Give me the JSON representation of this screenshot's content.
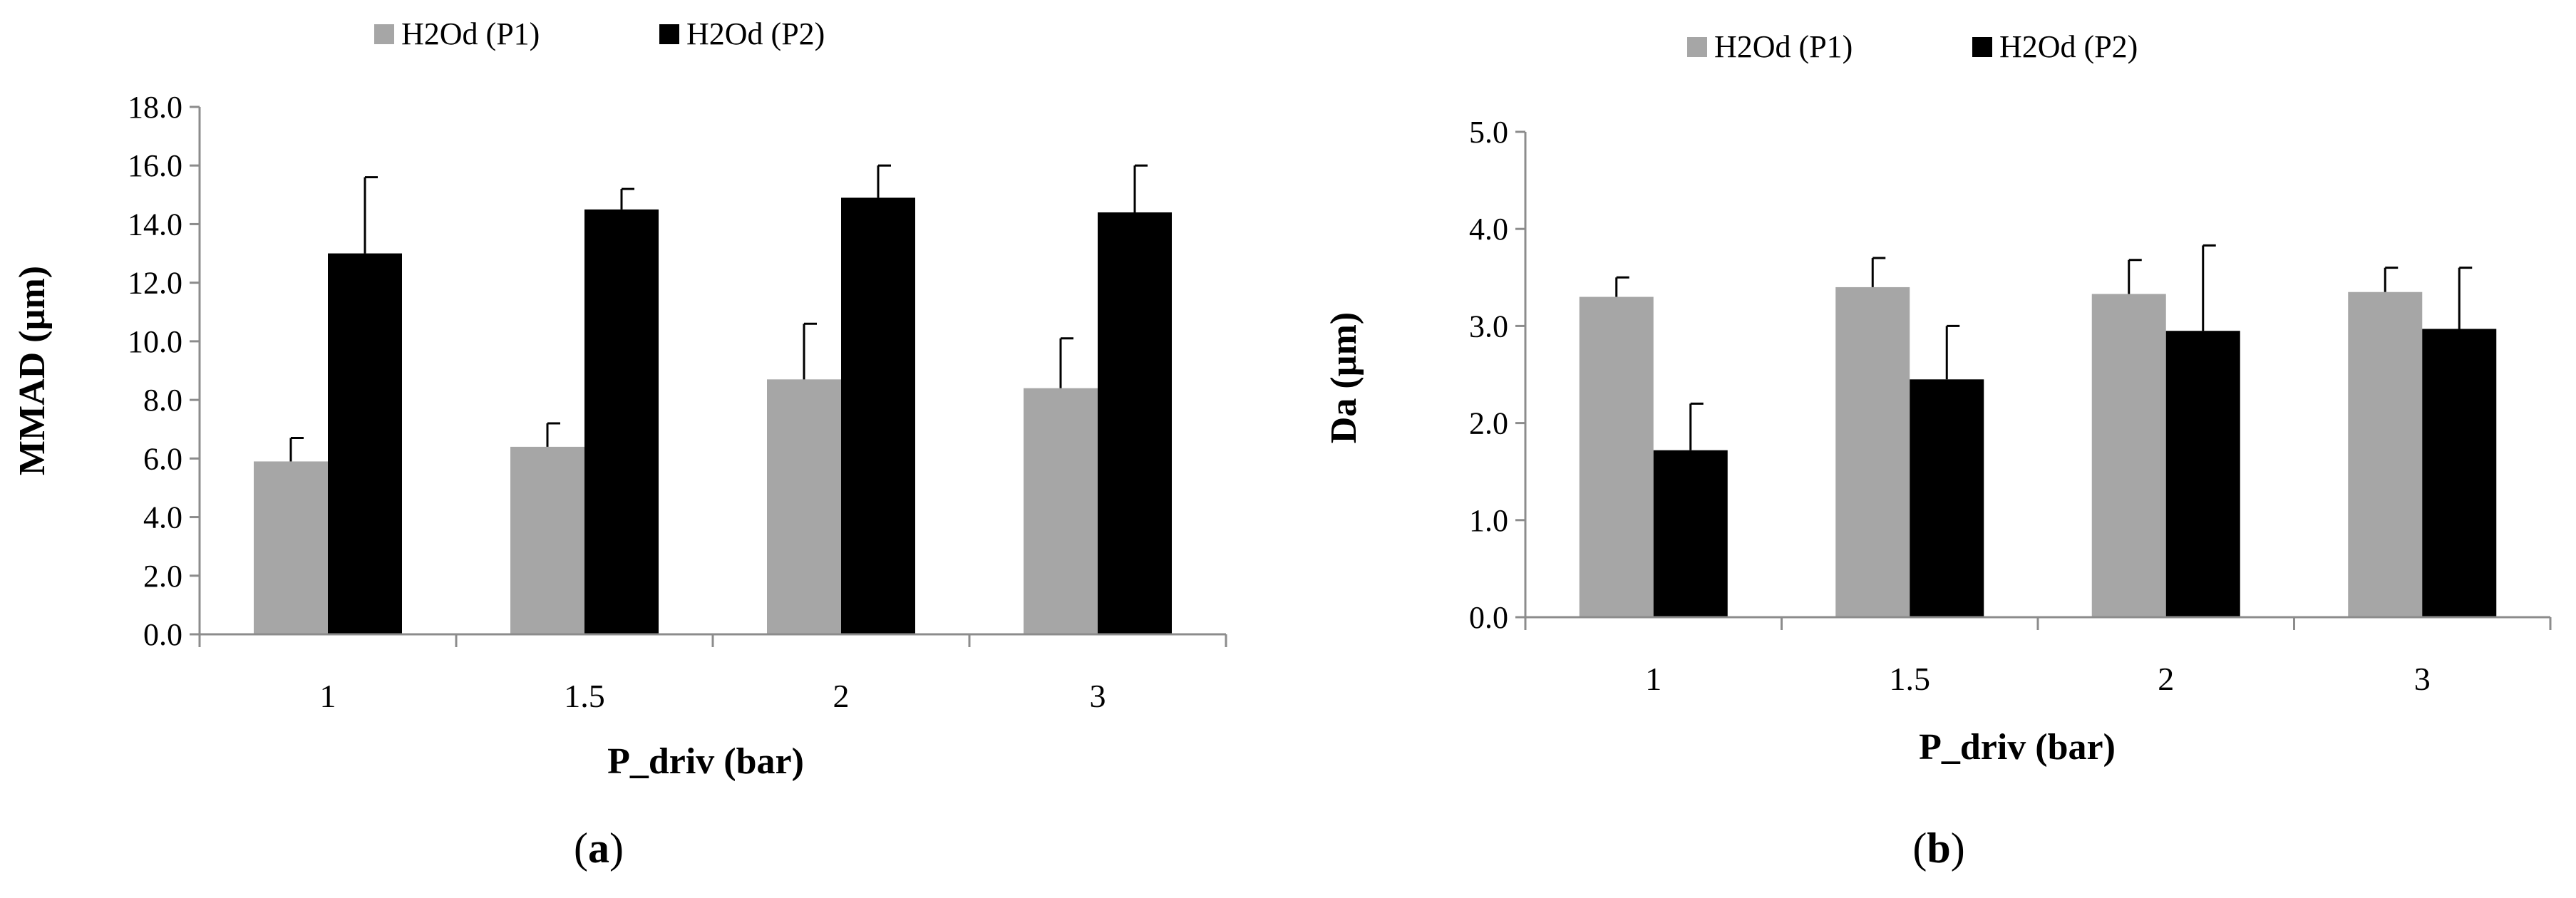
{
  "chart_data": [
    {
      "type": "bar",
      "panel_label": {
        "open": "(",
        "letter": "a",
        "close": ")"
      },
      "categories": [
        "1",
        "1.5",
        "2",
        "3"
      ],
      "series": [
        {
          "name": "H2Od (P1)",
          "color": "#a6a6a6",
          "values": [
            5.9,
            6.4,
            8.7,
            8.4
          ],
          "errors": [
            0.8,
            0.8,
            1.9,
            1.7
          ]
        },
        {
          "name": "H2Od (P2)",
          "color": "#000000",
          "values": [
            13.0,
            14.5,
            14.9,
            14.4
          ],
          "errors": [
            2.6,
            0.7,
            1.1,
            1.6
          ]
        }
      ],
      "xlabel": "P_driv (bar)",
      "ylabel": "MMAD (µm)",
      "ylim": [
        0,
        18
      ],
      "ytick_step": 2,
      "yticks": [
        "0.0",
        "2.0",
        "4.0",
        "6.0",
        "8.0",
        "10.0",
        "12.0",
        "14.0",
        "16.0",
        "18.0"
      ],
      "legend_position": "top-center",
      "grid": false
    },
    {
      "type": "bar",
      "panel_label": {
        "open": "(",
        "letter": "b",
        "close": ")"
      },
      "categories": [
        "1",
        "1.5",
        "2",
        "3"
      ],
      "series": [
        {
          "name": "H2Od (P1)",
          "color": "#a6a6a6",
          "values": [
            3.3,
            3.4,
            3.33,
            3.35
          ],
          "errors": [
            0.2,
            0.3,
            0.35,
            0.25
          ]
        },
        {
          "name": "H2Od (P2)",
          "color": "#000000",
          "values": [
            1.72,
            2.45,
            2.95,
            2.97
          ],
          "errors": [
            0.48,
            0.55,
            0.88,
            0.63
          ]
        }
      ],
      "xlabel": "P_driv (bar)",
      "ylabel": "Da (µm)",
      "ylim": [
        0,
        5
      ],
      "ytick_step": 1,
      "yticks": [
        "0.0",
        "1.0",
        "2.0",
        "3.0",
        "4.0",
        "5.0"
      ],
      "legend_position": "top-center",
      "grid": false
    }
  ]
}
